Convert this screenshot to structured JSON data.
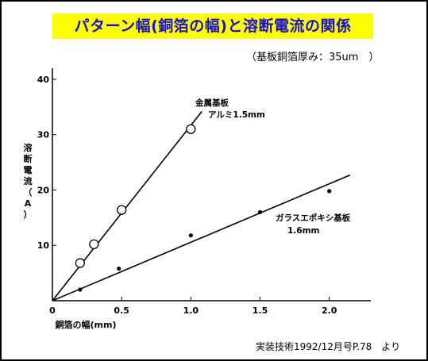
{
  "title": "パターン幅(銅箔の幅)と溶断電流の関係",
  "subtitle": "（基板銅箔厚み：35um　）",
  "source": "実装技術1992/12月号P.78　より",
  "colors": {
    "title_bg": "#ffff00",
    "title_text": "#1a10c8",
    "ink": "#000000"
  },
  "chart_data": {
    "type": "scatter",
    "xlabel": "銅箔の幅(mm)",
    "ylabel": "溶断電流（A）",
    "xlim": [
      0,
      2.3
    ],
    "ylim": [
      0,
      42
    ],
    "x_ticks": [
      0,
      0.5,
      1.0,
      1.5,
      2.0
    ],
    "x_tick_labels": [
      "0",
      "0.5",
      "1.0",
      "1.5",
      "2.0"
    ],
    "y_ticks": [
      0,
      10,
      20,
      30,
      40
    ],
    "y_tick_labels": [
      "0",
      "10",
      "20",
      "30",
      "40"
    ],
    "grid": false,
    "series": [
      {
        "name": "金属基板 アルミ1.5mm",
        "label_lines": [
          "金属基板",
          "アルミ1.5mm"
        ],
        "marker": "open-circle",
        "points": [
          [
            0.2,
            6.8
          ],
          [
            0.3,
            10.2
          ],
          [
            0.5,
            16.4
          ],
          [
            1.0,
            31.0
          ]
        ],
        "fit_line": [
          [
            0,
            0
          ],
          [
            1.08,
            34.2
          ]
        ]
      },
      {
        "name": "ガラスエポキシ基板 1.6mm",
        "label_lines": [
          "ガラスエポキシ基板",
          "1.6mm"
        ],
        "marker": "filled-dot",
        "points": [
          [
            0.2,
            2.0
          ],
          [
            0.48,
            5.8
          ],
          [
            1.0,
            11.8
          ],
          [
            1.5,
            16.0
          ],
          [
            2.0,
            19.8
          ]
        ],
        "fit_line": [
          [
            0,
            0
          ],
          [
            2.15,
            22.7
          ]
        ]
      }
    ]
  }
}
